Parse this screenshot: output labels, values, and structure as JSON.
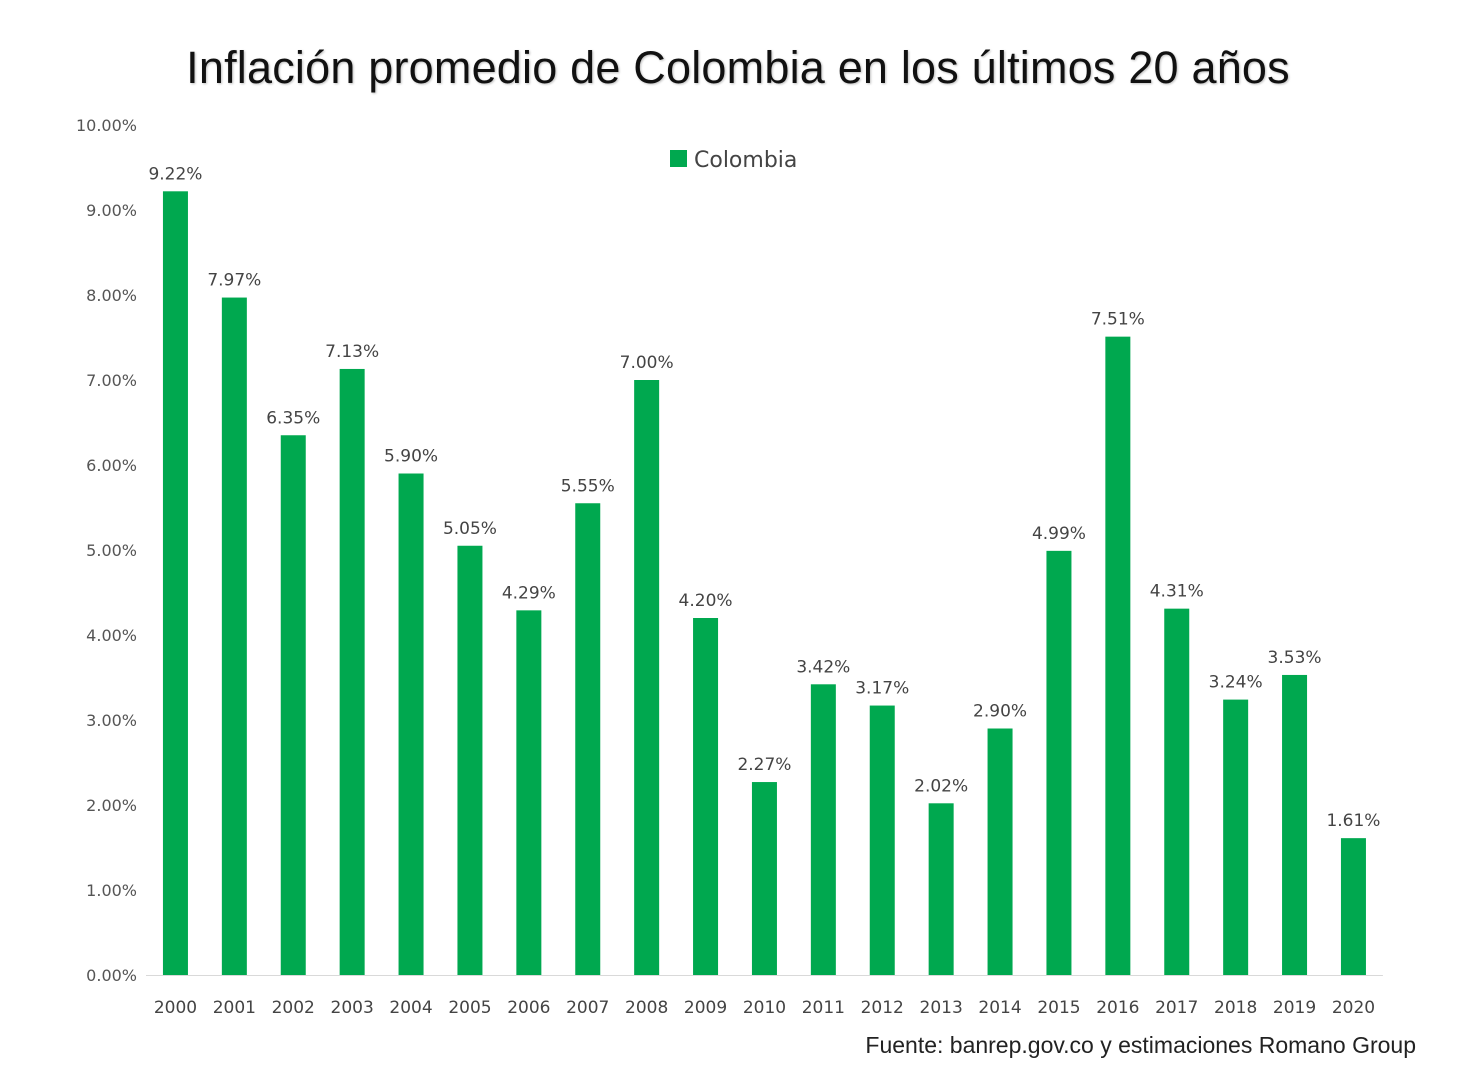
{
  "title": "Inflación promedio de Colombia en los últimos 20 años",
  "source": "Fuente: banrep.gov.co y estimaciones Romano Group",
  "chart_data": {
    "type": "bar",
    "title": "Inflación promedio de Colombia en los últimos 20 años",
    "xlabel": "",
    "ylabel": "",
    "categories": [
      "2000",
      "2001",
      "2002",
      "2003",
      "2004",
      "2005",
      "2006",
      "2007",
      "2008",
      "2009",
      "2010",
      "2011",
      "2012",
      "2013",
      "2014",
      "2015",
      "2016",
      "2017",
      "2018",
      "2019",
      "2020"
    ],
    "series": [
      {
        "name": "Colombia",
        "values": [
          9.22,
          7.97,
          6.35,
          7.13,
          5.9,
          5.05,
          4.29,
          5.55,
          7.0,
          4.2,
          2.27,
          3.42,
          3.17,
          2.02,
          2.9,
          4.99,
          7.51,
          4.31,
          3.24,
          3.53,
          1.61
        ],
        "labels": [
          "9.22%",
          "7.97%",
          "6.35%",
          "7.13%",
          "5.90%",
          "5.05%",
          "4.29%",
          "5.55%",
          "7.00%",
          "4.20%",
          "2.27%",
          "3.42%",
          "3.17%",
          "2.02%",
          "2.90%",
          "4.99%",
          "7.51%",
          "4.31%",
          "3.24%",
          "3.53%",
          "1.61%"
        ],
        "color": "#00a84f"
      }
    ],
    "ylim": [
      0,
      10
    ],
    "yticks": [
      0,
      1,
      2,
      3,
      4,
      5,
      6,
      7,
      8,
      9,
      10
    ],
    "ytick_labels": [
      "0.00%",
      "1.00%",
      "2.00%",
      "3.00%",
      "4.00%",
      "5.00%",
      "6.00%",
      "7.00%",
      "8.00%",
      "9.00%",
      "10.00%"
    ],
    "grid": false,
    "legend": "top-center"
  }
}
